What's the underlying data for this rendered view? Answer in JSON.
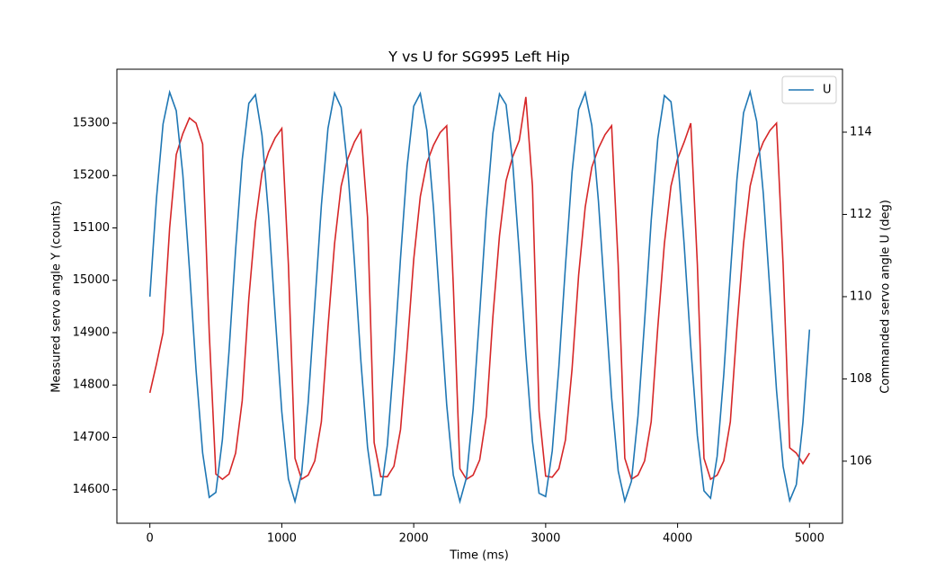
{
  "chart_data": {
    "type": "line",
    "title": "Y vs U for SG995 Left Hip",
    "xlabel": "Time (ms)",
    "ylabel": "Measured servo angle Y (counts)",
    "y2label": "Commanded servo angle U (deg)",
    "x": [
      0,
      50,
      100,
      150,
      200,
      250,
      300,
      350,
      400,
      450,
      500,
      550,
      600,
      650,
      700,
      750,
      800,
      850,
      900,
      950,
      1000,
      1050,
      1100,
      1150,
      1200,
      1250,
      1300,
      1350,
      1400,
      1450,
      1500,
      1550,
      1600,
      1650,
      1700,
      1750,
      1800,
      1850,
      1900,
      1950,
      2000,
      2050,
      2100,
      2150,
      2200,
      2250,
      2300,
      2350,
      2400,
      2450,
      2500,
      2550,
      2600,
      2650,
      2700,
      2750,
      2800,
      2850,
      2900,
      2950,
      3000,
      3050,
      3100,
      3150,
      3200,
      3250,
      3300,
      3350,
      3400,
      3450,
      3500,
      3550,
      3600,
      3650,
      3700,
      3750,
      3800,
      3850,
      3900,
      3950,
      4000,
      4050,
      4100,
      4150,
      4200,
      4250,
      4300,
      4350,
      4400,
      4450,
      4500,
      4550,
      4600,
      4650,
      4700,
      4750,
      4800,
      4850,
      4900,
      4950,
      5000
    ],
    "series": [
      {
        "color": "#d62728",
        "axis": "y",
        "values": [
          14785,
          14840,
          14900,
          15100,
          15240,
          15280,
          15310,
          15300,
          15260,
          14900,
          14630,
          14620,
          14630,
          14670,
          14770,
          14965,
          15110,
          15205,
          15245,
          15272,
          15290,
          15030,
          14660,
          14620,
          14628,
          14655,
          14730,
          14910,
          15070,
          15180,
          15232,
          15264,
          15286,
          15120,
          14690,
          14625,
          14625,
          14645,
          14715,
          14870,
          15040,
          15160,
          15225,
          15258,
          15282,
          15295,
          14990,
          14640,
          14620,
          14628,
          14657,
          14740,
          14930,
          15085,
          15190,
          15236,
          15267,
          15350,
          15180,
          14750,
          14626,
          14624,
          14640,
          14695,
          14830,
          15010,
          15140,
          15216,
          15252,
          15278,
          15295,
          15030,
          14660,
          14620,
          14628,
          14655,
          14730,
          14910,
          15070,
          15180,
          15232,
          15264,
          15300,
          15030,
          14660,
          14620,
          14628,
          14655,
          14730,
          14910,
          15070,
          15180,
          15232,
          15264,
          15286,
          15300,
          15030,
          14680,
          14670,
          14650,
          14670
        ]
      },
      {
        "name": "U",
        "color": "#1f77b4",
        "axis": "y2",
        "values": [
          110.0,
          112.39,
          114.2,
          114.97,
          114.52,
          112.96,
          110.67,
          108.22,
          106.2,
          105.12,
          105.24,
          106.53,
          108.67,
          111.14,
          113.33,
          114.7,
          114.91,
          113.92,
          111.97,
          109.53,
          107.2,
          105.57,
          105.02,
          105.7,
          107.43,
          109.8,
          112.22,
          114.09,
          114.95,
          114.6,
          113.12,
          110.87,
          108.41,
          106.34,
          105.17,
          105.18,
          106.39,
          108.48,
          110.94,
          113.17,
          114.63,
          114.94,
          114.04,
          112.15,
          109.73,
          107.37,
          105.66,
          105.02,
          105.6,
          107.26,
          109.6,
          112.03,
          113.97,
          114.93,
          114.67,
          113.27,
          111.07,
          108.6,
          106.48,
          105.22,
          105.14,
          106.25,
          108.29,
          110.74,
          113.02,
          114.55,
          114.96,
          114.16,
          112.33,
          109.93,
          107.54,
          105.76,
          105.03,
          105.51,
          107.1,
          109.4,
          111.85,
          113.84,
          114.89,
          114.74,
          113.42,
          111.26,
          108.79,
          106.62,
          105.28,
          105.1,
          106.12,
          108.1,
          110.55,
          112.86,
          114.47,
          114.98,
          114.26,
          112.5,
          110.13,
          107.72,
          105.87,
          105.04,
          105.43,
          106.94,
          109.2
        ]
      }
    ],
    "xlim": [
      -250,
      5250
    ],
    "xticks": [
      0,
      1000,
      2000,
      3000,
      4000,
      5000
    ],
    "ylim": [
      14536,
      15403
    ],
    "yticks": [
      14600,
      14700,
      14800,
      14900,
      15000,
      15100,
      15200,
      15300
    ],
    "y2lim": [
      104.49,
      115.53
    ],
    "y2ticks": [
      106,
      108,
      110,
      112,
      114
    ],
    "legend": "upper right"
  }
}
